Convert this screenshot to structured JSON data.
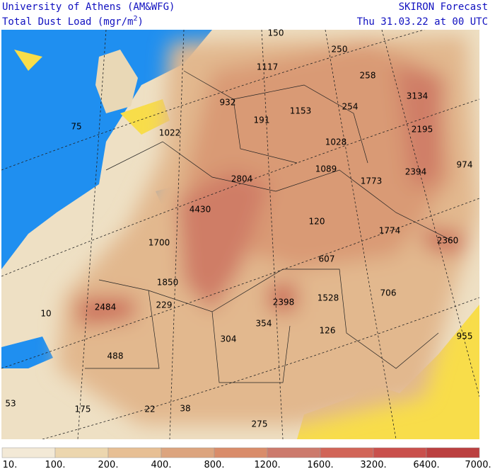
{
  "header": {
    "left": [
      "University of Athens (AM&WFG)",
      [
        "Total Dust Load (mgr/m",
        "2",
        ")"
      ]
    ],
    "right": [
      "SKIRON Forecast",
      "Thu 31.03.22 at 00 UTC"
    ]
  },
  "map_labels": [
    150,
    250,
    1117,
    258,
    3134,
    932,
    191,
    1153,
    254,
    75,
    1022,
    2195,
    1028,
    974,
    1089,
    2394,
    2804,
    1773,
    4430,
    120,
    1774,
    2360,
    1700,
    607,
    1850,
    706,
    2398,
    1528,
    2484,
    229,
    10,
    354,
    126,
    955,
    304,
    488,
    53,
    175,
    22,
    38,
    275
  ],
  "colorbar": {
    "colors": [
      "#f3e9d6",
      "#ecd6ae",
      "#e7bf94",
      "#dca47e",
      "#d98c6a",
      "#cc7a6c",
      "#d16558",
      "#c9504c",
      "#bb4040"
    ],
    "labels": [
      "10.",
      "100.",
      "200.",
      "400.",
      "800.",
      "1200.",
      "1600.",
      "3200.",
      "6400.",
      "7000."
    ]
  }
}
